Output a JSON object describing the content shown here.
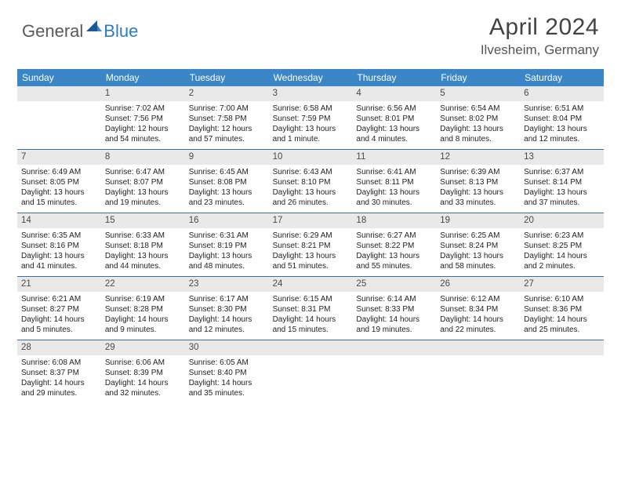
{
  "brand": {
    "part1": "General",
    "part2": "Blue"
  },
  "title": "April 2024",
  "location": "Ilvesheim, Germany",
  "colors": {
    "header_bg": "#3b86c7",
    "row_divider": "#3b6fa0",
    "daynum_bg": "#e9e9e9",
    "logo_blue": "#2f7bbf",
    "logo_gray": "#5a5a5a"
  },
  "dow": [
    "Sunday",
    "Monday",
    "Tuesday",
    "Wednesday",
    "Thursday",
    "Friday",
    "Saturday"
  ],
  "weeks": [
    [
      {
        "n": "",
        "sunrise": "",
        "sunset": "",
        "daylight1": "",
        "daylight2": ""
      },
      {
        "n": "1",
        "sunrise": "Sunrise: 7:02 AM",
        "sunset": "Sunset: 7:56 PM",
        "daylight1": "Daylight: 12 hours",
        "daylight2": "and 54 minutes."
      },
      {
        "n": "2",
        "sunrise": "Sunrise: 7:00 AM",
        "sunset": "Sunset: 7:58 PM",
        "daylight1": "Daylight: 12 hours",
        "daylight2": "and 57 minutes."
      },
      {
        "n": "3",
        "sunrise": "Sunrise: 6:58 AM",
        "sunset": "Sunset: 7:59 PM",
        "daylight1": "Daylight: 13 hours",
        "daylight2": "and 1 minute."
      },
      {
        "n": "4",
        "sunrise": "Sunrise: 6:56 AM",
        "sunset": "Sunset: 8:01 PM",
        "daylight1": "Daylight: 13 hours",
        "daylight2": "and 4 minutes."
      },
      {
        "n": "5",
        "sunrise": "Sunrise: 6:54 AM",
        "sunset": "Sunset: 8:02 PM",
        "daylight1": "Daylight: 13 hours",
        "daylight2": "and 8 minutes."
      },
      {
        "n": "6",
        "sunrise": "Sunrise: 6:51 AM",
        "sunset": "Sunset: 8:04 PM",
        "daylight1": "Daylight: 13 hours",
        "daylight2": "and 12 minutes."
      }
    ],
    [
      {
        "n": "7",
        "sunrise": "Sunrise: 6:49 AM",
        "sunset": "Sunset: 8:05 PM",
        "daylight1": "Daylight: 13 hours",
        "daylight2": "and 15 minutes."
      },
      {
        "n": "8",
        "sunrise": "Sunrise: 6:47 AM",
        "sunset": "Sunset: 8:07 PM",
        "daylight1": "Daylight: 13 hours",
        "daylight2": "and 19 minutes."
      },
      {
        "n": "9",
        "sunrise": "Sunrise: 6:45 AM",
        "sunset": "Sunset: 8:08 PM",
        "daylight1": "Daylight: 13 hours",
        "daylight2": "and 23 minutes."
      },
      {
        "n": "10",
        "sunrise": "Sunrise: 6:43 AM",
        "sunset": "Sunset: 8:10 PM",
        "daylight1": "Daylight: 13 hours",
        "daylight2": "and 26 minutes."
      },
      {
        "n": "11",
        "sunrise": "Sunrise: 6:41 AM",
        "sunset": "Sunset: 8:11 PM",
        "daylight1": "Daylight: 13 hours",
        "daylight2": "and 30 minutes."
      },
      {
        "n": "12",
        "sunrise": "Sunrise: 6:39 AM",
        "sunset": "Sunset: 8:13 PM",
        "daylight1": "Daylight: 13 hours",
        "daylight2": "and 33 minutes."
      },
      {
        "n": "13",
        "sunrise": "Sunrise: 6:37 AM",
        "sunset": "Sunset: 8:14 PM",
        "daylight1": "Daylight: 13 hours",
        "daylight2": "and 37 minutes."
      }
    ],
    [
      {
        "n": "14",
        "sunrise": "Sunrise: 6:35 AM",
        "sunset": "Sunset: 8:16 PM",
        "daylight1": "Daylight: 13 hours",
        "daylight2": "and 41 minutes."
      },
      {
        "n": "15",
        "sunrise": "Sunrise: 6:33 AM",
        "sunset": "Sunset: 8:18 PM",
        "daylight1": "Daylight: 13 hours",
        "daylight2": "and 44 minutes."
      },
      {
        "n": "16",
        "sunrise": "Sunrise: 6:31 AM",
        "sunset": "Sunset: 8:19 PM",
        "daylight1": "Daylight: 13 hours",
        "daylight2": "and 48 minutes."
      },
      {
        "n": "17",
        "sunrise": "Sunrise: 6:29 AM",
        "sunset": "Sunset: 8:21 PM",
        "daylight1": "Daylight: 13 hours",
        "daylight2": "and 51 minutes."
      },
      {
        "n": "18",
        "sunrise": "Sunrise: 6:27 AM",
        "sunset": "Sunset: 8:22 PM",
        "daylight1": "Daylight: 13 hours",
        "daylight2": "and 55 minutes."
      },
      {
        "n": "19",
        "sunrise": "Sunrise: 6:25 AM",
        "sunset": "Sunset: 8:24 PM",
        "daylight1": "Daylight: 13 hours",
        "daylight2": "and 58 minutes."
      },
      {
        "n": "20",
        "sunrise": "Sunrise: 6:23 AM",
        "sunset": "Sunset: 8:25 PM",
        "daylight1": "Daylight: 14 hours",
        "daylight2": "and 2 minutes."
      }
    ],
    [
      {
        "n": "21",
        "sunrise": "Sunrise: 6:21 AM",
        "sunset": "Sunset: 8:27 PM",
        "daylight1": "Daylight: 14 hours",
        "daylight2": "and 5 minutes."
      },
      {
        "n": "22",
        "sunrise": "Sunrise: 6:19 AM",
        "sunset": "Sunset: 8:28 PM",
        "daylight1": "Daylight: 14 hours",
        "daylight2": "and 9 minutes."
      },
      {
        "n": "23",
        "sunrise": "Sunrise: 6:17 AM",
        "sunset": "Sunset: 8:30 PM",
        "daylight1": "Daylight: 14 hours",
        "daylight2": "and 12 minutes."
      },
      {
        "n": "24",
        "sunrise": "Sunrise: 6:15 AM",
        "sunset": "Sunset: 8:31 PM",
        "daylight1": "Daylight: 14 hours",
        "daylight2": "and 15 minutes."
      },
      {
        "n": "25",
        "sunrise": "Sunrise: 6:14 AM",
        "sunset": "Sunset: 8:33 PM",
        "daylight1": "Daylight: 14 hours",
        "daylight2": "and 19 minutes."
      },
      {
        "n": "26",
        "sunrise": "Sunrise: 6:12 AM",
        "sunset": "Sunset: 8:34 PM",
        "daylight1": "Daylight: 14 hours",
        "daylight2": "and 22 minutes."
      },
      {
        "n": "27",
        "sunrise": "Sunrise: 6:10 AM",
        "sunset": "Sunset: 8:36 PM",
        "daylight1": "Daylight: 14 hours",
        "daylight2": "and 25 minutes."
      }
    ],
    [
      {
        "n": "28",
        "sunrise": "Sunrise: 6:08 AM",
        "sunset": "Sunset: 8:37 PM",
        "daylight1": "Daylight: 14 hours",
        "daylight2": "and 29 minutes."
      },
      {
        "n": "29",
        "sunrise": "Sunrise: 6:06 AM",
        "sunset": "Sunset: 8:39 PM",
        "daylight1": "Daylight: 14 hours",
        "daylight2": "and 32 minutes."
      },
      {
        "n": "30",
        "sunrise": "Sunrise: 6:05 AM",
        "sunset": "Sunset: 8:40 PM",
        "daylight1": "Daylight: 14 hours",
        "daylight2": "and 35 minutes."
      },
      {
        "n": "",
        "sunrise": "",
        "sunset": "",
        "daylight1": "",
        "daylight2": ""
      },
      {
        "n": "",
        "sunrise": "",
        "sunset": "",
        "daylight1": "",
        "daylight2": ""
      },
      {
        "n": "",
        "sunrise": "",
        "sunset": "",
        "daylight1": "",
        "daylight2": ""
      },
      {
        "n": "",
        "sunrise": "",
        "sunset": "",
        "daylight1": "",
        "daylight2": ""
      }
    ]
  ]
}
